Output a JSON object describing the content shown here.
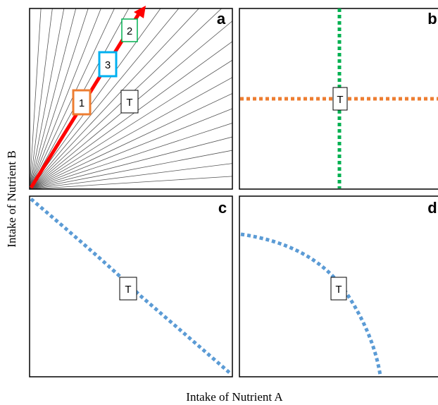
{
  "axes": {
    "y_title": "Intake of Nutrient B",
    "x_title": "Intake of Nutrient A"
  },
  "panels": {
    "a": {
      "letter": "a",
      "target": "T",
      "boxes": [
        "1",
        "3",
        "2"
      ]
    },
    "b": {
      "letter": "b",
      "target": "T"
    },
    "c": {
      "letter": "c",
      "target": "T"
    },
    "d": {
      "letter": "d",
      "target": "T"
    }
  },
  "colors": {
    "red_arrow": "#ff0000",
    "box_1": "#ed7d31",
    "box_3": "#00b0f0",
    "box_2": "#00b050",
    "green_dotted": "#00b050",
    "orange_dotted": "#ed7d31",
    "blue_dotted": "#5b9bd5"
  }
}
